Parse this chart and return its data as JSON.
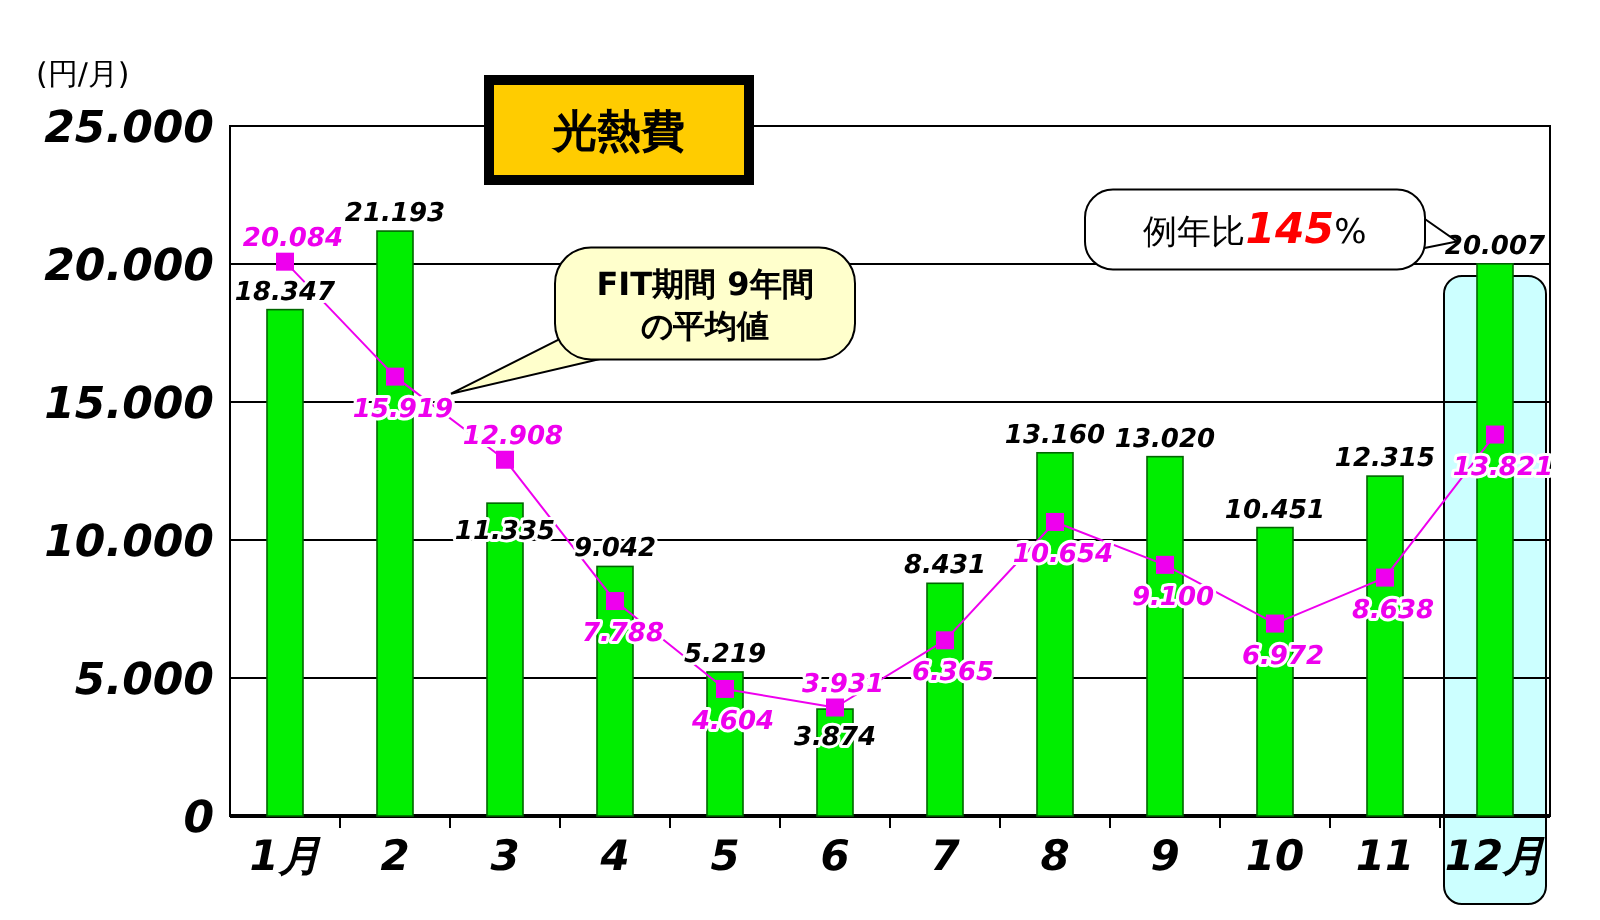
{
  "chart_data": {
    "type": "bar",
    "title": "光熱費",
    "ylabel": "(円/月)",
    "categories": [
      "1月",
      "2",
      "3",
      "4",
      "5",
      "6",
      "7",
      "8",
      "9",
      "10",
      "11",
      "12月"
    ],
    "series": [
      {
        "color": "#00ee00",
        "values": [
          18347,
          21193,
          11335,
          9042,
          5219,
          3874,
          8431,
          13160,
          13020,
          10451,
          12315,
          20007
        ],
        "value_labels": [
          "18.347",
          "21.193",
          "11.335",
          "9.042",
          "5.219",
          "3.874",
          "8.431",
          "13.160",
          "13.020",
          "10.451",
          "12.315",
          "20.007"
        ]
      },
      {
        "type": "line",
        "name": "FIT期間 9年間の平均値",
        "color": "#ee00ee",
        "marker": "square",
        "values": [
          20084,
          15919,
          12908,
          7788,
          4604,
          3931,
          6365,
          10654,
          9100,
          6972,
          8638,
          13821
        ],
        "value_labels": [
          "20.084",
          "15.919",
          "12.908",
          "7.788",
          "4.604",
          "3.931",
          "6.365",
          "10.654",
          "9.100",
          "6.972",
          "8.638",
          "13.821"
        ]
      }
    ],
    "ylim": [
      0,
      25000
    ],
    "yticks": [
      {
        "value": 0,
        "label": "0"
      },
      {
        "value": 5000,
        "label": "5.000"
      },
      {
        "value": 10000,
        "label": "10.000"
      },
      {
        "value": 15000,
        "label": "15.000"
      },
      {
        "value": 20000,
        "label": "20.000"
      },
      {
        "value": 25000,
        "label": "25.000"
      }
    ],
    "grid": "y",
    "legend": false,
    "bands": [
      {
        "axis": "x",
        "from": "12月",
        "to": "12月",
        "color": "#ccffff"
      }
    ],
    "annotations": [
      "例年比**145**%"
    ]
  }
}
